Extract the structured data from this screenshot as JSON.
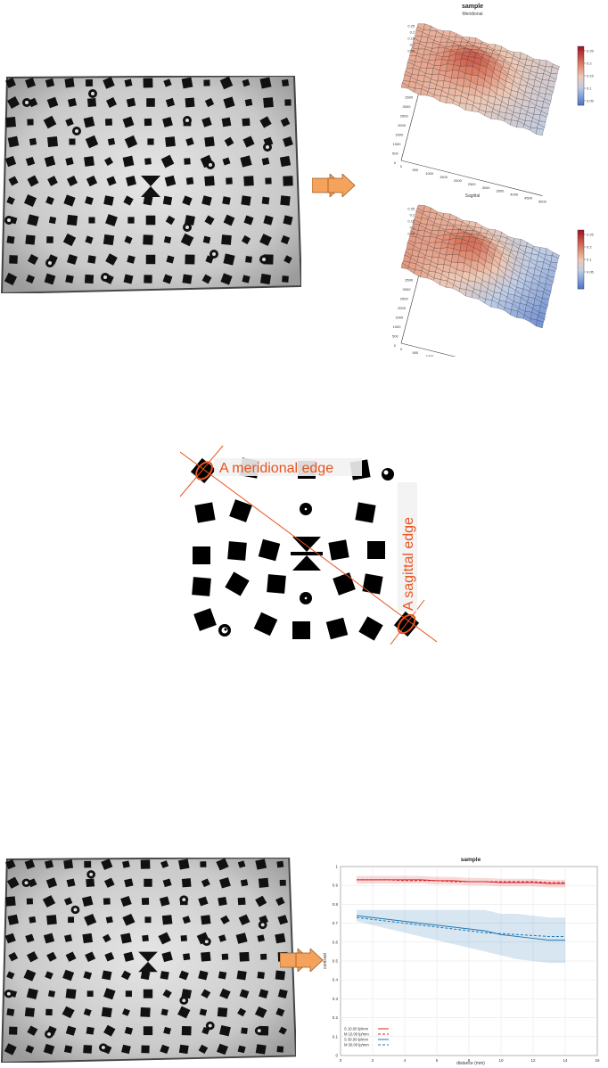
{
  "top": {
    "title": "sample",
    "plot1_title": "Meridional",
    "plot2_title": "Sagittal",
    "z_ticks": [
      "0.25",
      "0.2",
      "0.15",
      "0.1",
      "0.05"
    ],
    "x_ticks": [
      "0",
      "500",
      "1000",
      "1500",
      "2000",
      "2500",
      "3000",
      "3500",
      "4000",
      "4500",
      "5000"
    ],
    "y_ticks": [
      "0",
      "500",
      "1000",
      "1500",
      "2000",
      "2500",
      "3000",
      "3500"
    ],
    "cbar1_ticks": [
      "0.25",
      "0.2",
      "0.15",
      "0.1",
      "0.05"
    ],
    "cbar2_ticks": [
      "0.25",
      "0.2",
      "0.15",
      "0.1",
      "0.05"
    ],
    "colors": {
      "hot": "#b2182b",
      "mid": "#e8a58a",
      "cold": "#4f7fcf",
      "arrow": "#f5a35c"
    }
  },
  "middle": {
    "meridional_label": "A meridional edge",
    "sagittal_label": "A sagittal edge",
    "colors": {
      "annotation": "#e8531f"
    }
  },
  "chart_data": {
    "type": "line",
    "title": "sample",
    "xlabel": "distance (mm)",
    "ylabel": "contrast",
    "xlim": [
      0,
      16
    ],
    "ylim": [
      0,
      1
    ],
    "x_ticks": [
      "0",
      "2",
      "4",
      "6",
      "8",
      "10",
      "12",
      "14",
      "16"
    ],
    "y_ticks": [
      "0",
      "0.1",
      "0.2",
      "0.3",
      "0.4",
      "0.5",
      "0.6",
      "0.7",
      "0.8",
      "0.9",
      "1"
    ],
    "legend": "bottom-left",
    "grid": true,
    "x": [
      1.0,
      2,
      3,
      4,
      5,
      6,
      7,
      8,
      9,
      10,
      11,
      12,
      13,
      14
    ],
    "series": [
      {
        "name": "S 10.00 lp/mm",
        "color": "#d62728",
        "dash": false,
        "values": [
          0.93,
          0.93,
          0.93,
          0.93,
          0.93,
          0.925,
          0.925,
          0.92,
          0.92,
          0.915,
          0.915,
          0.915,
          0.91,
          0.91
        ],
        "band": [
          0.02,
          0.02,
          0.02,
          0.02,
          0.02,
          0.02,
          0.02,
          0.02,
          0.02,
          0.02,
          0.02,
          0.02,
          0.02,
          0.02
        ]
      },
      {
        "name": "M 10.00 lp/mm",
        "color": "#d62728",
        "dash": true,
        "values": [
          0.93,
          0.93,
          0.93,
          0.925,
          0.925,
          0.925,
          0.92,
          0.92,
          0.92,
          0.92,
          0.92,
          0.92,
          0.915,
          0.915
        ],
        "band": [
          0.02,
          0.02,
          0.02,
          0.02,
          0.02,
          0.02,
          0.02,
          0.02,
          0.02,
          0.02,
          0.02,
          0.02,
          0.02,
          0.02
        ]
      },
      {
        "name": "S 30.00 lp/mm",
        "color": "#1f77b4",
        "dash": false,
        "values": [
          0.74,
          0.73,
          0.72,
          0.71,
          0.7,
          0.69,
          0.68,
          0.67,
          0.66,
          0.64,
          0.63,
          0.62,
          0.61,
          0.61
        ],
        "band": [
          0.03,
          0.04,
          0.05,
          0.06,
          0.07,
          0.08,
          0.09,
          0.1,
          0.11,
          0.11,
          0.12,
          0.12,
          0.12,
          0.12
        ]
      },
      {
        "name": "M 30.00 lp/mm",
        "color": "#1f77b4",
        "dash": true,
        "values": [
          0.73,
          0.72,
          0.71,
          0.7,
          0.69,
          0.68,
          0.67,
          0.66,
          0.65,
          0.645,
          0.64,
          0.635,
          0.63,
          0.63
        ],
        "band": [
          0.03,
          0.04,
          0.05,
          0.06,
          0.07,
          0.08,
          0.09,
          0.1,
          0.11,
          0.11,
          0.12,
          0.12,
          0.12,
          0.12
        ]
      }
    ]
  }
}
